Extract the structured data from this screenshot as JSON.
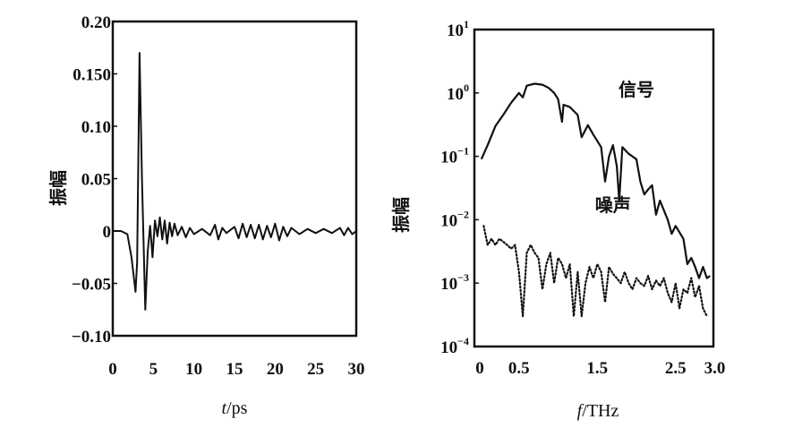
{
  "chart_data": [
    {
      "type": "line",
      "xlabel_italic": "t",
      "xlabel_rest": "/ps",
      "ylabel": "振幅",
      "xlim": [
        0,
        30
      ],
      "ylim": [
        -0.1,
        0.2
      ],
      "xticks": [
        0,
        5,
        10,
        15,
        20,
        25,
        30
      ],
      "xtick_labels": [
        "0",
        "5",
        "10",
        "15",
        "20",
        "25",
        "30"
      ],
      "yticks": [
        0.2,
        0.15,
        0.1,
        0.05,
        0,
        -0.05,
        -0.1
      ],
      "ytick_labels": [
        "0.20",
        "0.150",
        "0.10",
        "0.05",
        "0",
        "−0.05",
        "−0.10"
      ],
      "grid": false,
      "line_color": "#111111",
      "series": [
        {
          "x": [
            0,
            1,
            1.8,
            2.3,
            2.8,
            3.0,
            3.3,
            3.6,
            4.0,
            4.3,
            4.6,
            4.9,
            5.2,
            5.5,
            5.8,
            6.1,
            6.4,
            6.7,
            7.0,
            7.3,
            7.6,
            8,
            8.5,
            9,
            9.5,
            10,
            11,
            12,
            12.6,
            13,
            13.5,
            14,
            15,
            15.5,
            16,
            16.5,
            17,
            17.5,
            18,
            18.5,
            19,
            19.5,
            20,
            20.5,
            21,
            21.5,
            22,
            23,
            24,
            25,
            26,
            27,
            28,
            28.5,
            29,
            29.5,
            30
          ],
          "y": [
            0,
            0,
            -0.003,
            -0.025,
            -0.058,
            -0.03,
            0.17,
            0.05,
            -0.075,
            -0.02,
            0.005,
            -0.025,
            0.01,
            -0.005,
            0.013,
            -0.008,
            0.01,
            -0.012,
            0.008,
            -0.005,
            0.007,
            -0.004,
            0.004,
            -0.006,
            0.003,
            -0.003,
            0.002,
            -0.004,
            0.006,
            -0.008,
            0.003,
            -0.002,
            0.004,
            -0.007,
            0.007,
            -0.006,
            0.006,
            -0.007,
            0.006,
            -0.008,
            0.005,
            -0.006,
            0.007,
            -0.009,
            0.004,
            -0.005,
            0.003,
            -0.003,
            0.002,
            -0.002,
            0.002,
            -0.002,
            0.003,
            -0.004,
            0.003,
            -0.003,
            0
          ]
        }
      ]
    },
    {
      "type": "line",
      "xlabel_italic": "f",
      "xlabel_rest": "/THz",
      "ylabel": "振幅",
      "yscale": "log",
      "xlim": [
        0,
        3.0
      ],
      "ylim": [
        0.0001,
        10
      ],
      "xticks": [
        0,
        0.5,
        1.5,
        2.5,
        3.0
      ],
      "xtick_labels": [
        "0",
        "0.5",
        "1.5",
        "2.5",
        "3.0"
      ],
      "yticks": [
        10,
        1,
        0.1,
        0.01,
        0.001,
        0.0001
      ],
      "ytick_labels": [
        {
          "base": "10",
          "exp": "1"
        },
        {
          "base": "10",
          "exp": "0"
        },
        {
          "base": "10",
          "exp": "−1"
        },
        {
          "base": "10",
          "exp": "−2"
        },
        {
          "base": "10",
          "exp": "−3"
        },
        {
          "base": "10",
          "exp": "−4"
        }
      ],
      "grid": false,
      "annotations": [
        {
          "text": "信号",
          "x": 2.0,
          "y": 0.9
        },
        {
          "text": "噪声",
          "x": 1.7,
          "y": 0.0135
        }
      ],
      "series": [
        {
          "style": "solid",
          "x": [
            0.02,
            0.1,
            0.2,
            0.31,
            0.4,
            0.5,
            0.55,
            0.6,
            0.7,
            0.8,
            0.88,
            0.95,
            1.0,
            1.05,
            1.07,
            1.15,
            1.25,
            1.3,
            1.38,
            1.45,
            1.55,
            1.6,
            1.65,
            1.7,
            1.75,
            1.78,
            1.82,
            1.9,
            2.0,
            2.05,
            2.1,
            2.15,
            2.2,
            2.25,
            2.3,
            2.4,
            2.45,
            2.5,
            2.6,
            2.65,
            2.7,
            2.75,
            2.8,
            2.85,
            2.9,
            2.94
          ],
          "y": [
            0.09,
            0.15,
            0.3,
            0.47,
            0.7,
            1.0,
            0.85,
            1.3,
            1.4,
            1.35,
            1.2,
            1.0,
            0.8,
            0.35,
            0.65,
            0.6,
            0.45,
            0.2,
            0.31,
            0.22,
            0.14,
            0.04,
            0.1,
            0.15,
            0.07,
            0.02,
            0.14,
            0.11,
            0.09,
            0.04,
            0.025,
            0.03,
            0.035,
            0.012,
            0.02,
            0.01,
            0.006,
            0.008,
            0.005,
            0.002,
            0.0025,
            0.0018,
            0.0012,
            0.0018,
            0.0012,
            0.0013
          ]
        },
        {
          "style": "dotted",
          "x": [
            0.05,
            0.1,
            0.15,
            0.2,
            0.25,
            0.3,
            0.35,
            0.4,
            0.45,
            0.5,
            0.55,
            0.6,
            0.65,
            0.7,
            0.75,
            0.8,
            0.85,
            0.9,
            0.95,
            1.0,
            1.05,
            1.1,
            1.15,
            1.2,
            1.25,
            1.3,
            1.35,
            1.4,
            1.45,
            1.5,
            1.55,
            1.6,
            1.65,
            1.7,
            1.75,
            1.8,
            1.85,
            1.9,
            1.95,
            2.0,
            2.05,
            2.1,
            2.15,
            2.2,
            2.25,
            2.3,
            2.35,
            2.4,
            2.45,
            2.5,
            2.55,
            2.6,
            2.65,
            2.7,
            2.75,
            2.8,
            2.85,
            2.9
          ],
          "y": [
            0.008,
            0.004,
            0.005,
            0.004,
            0.005,
            0.0045,
            0.004,
            0.0035,
            0.004,
            0.0015,
            0.0003,
            0.003,
            0.004,
            0.003,
            0.0025,
            0.0008,
            0.002,
            0.003,
            0.001,
            0.0025,
            0.002,
            0.0012,
            0.002,
            0.0003,
            0.0015,
            0.0003,
            0.001,
            0.0018,
            0.0012,
            0.002,
            0.0015,
            0.0005,
            0.0018,
            0.0014,
            0.0012,
            0.001,
            0.0015,
            0.001,
            0.0008,
            0.0012,
            0.001,
            0.0009,
            0.0013,
            0.0008,
            0.0011,
            0.0009,
            0.0012,
            0.0007,
            0.0005,
            0.001,
            0.0004,
            0.0008,
            0.0007,
            0.0012,
            0.0006,
            0.0009,
            0.0004,
            0.0003
          ]
        }
      ]
    }
  ]
}
